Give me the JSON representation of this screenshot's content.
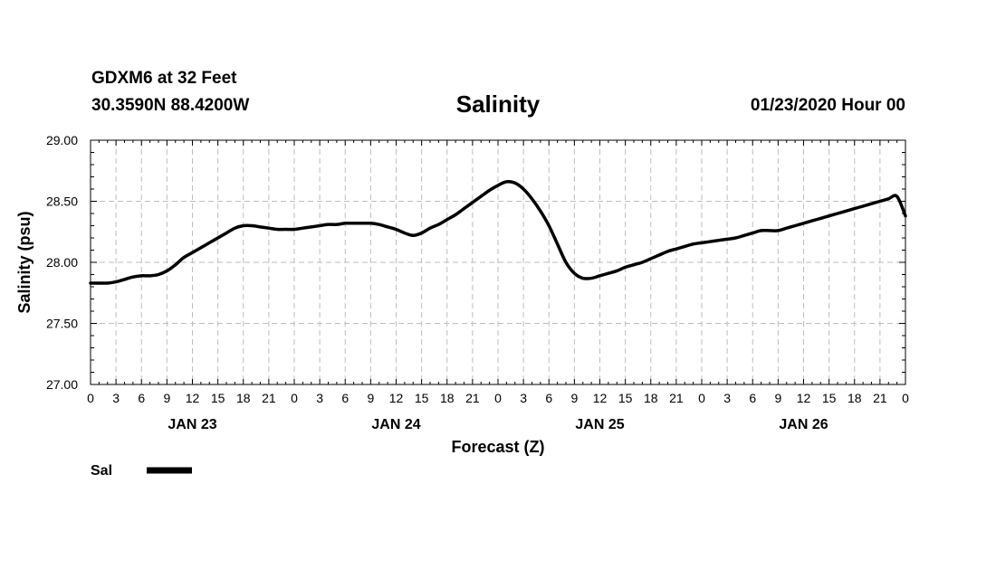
{
  "header": {
    "station": "GDXM6 at 32 Feet",
    "coords": "30.3590N 88.4200W",
    "datetime": "01/23/2020 Hour 00"
  },
  "chart_data": {
    "type": "line",
    "title": "Salinity",
    "xlabel": "Forecast (Z)",
    "ylabel": "Salinity (psu)",
    "ylim": [
      27.0,
      29.0
    ],
    "yticks": [
      "27.00",
      "27.50",
      "28.00",
      "28.50",
      "29.00"
    ],
    "xlim": [
      0,
      96
    ],
    "x_tick_step_hours": 3,
    "x_tick_labels": [
      "0",
      "3",
      "6",
      "9",
      "12",
      "15",
      "18",
      "21",
      "0",
      "3",
      "6",
      "9",
      "12",
      "15",
      "18",
      "21",
      "0",
      "3",
      "6",
      "9",
      "12",
      "15",
      "18",
      "21",
      "0",
      "3",
      "6",
      "9",
      "12",
      "15",
      "18",
      "21",
      "0"
    ],
    "day_labels": [
      {
        "label": "JAN 23",
        "hour": 12
      },
      {
        "label": "JAN 24",
        "hour": 36
      },
      {
        "label": "JAN 25",
        "hour": 60
      },
      {
        "label": "JAN 26",
        "hour": 84
      }
    ],
    "grid": true,
    "line_color": "#000000",
    "series": [
      {
        "name": "Sal",
        "x": [
          0,
          1,
          2,
          3,
          4,
          5,
          6,
          7,
          8,
          9,
          10,
          11,
          12,
          13,
          14,
          15,
          16,
          17,
          18,
          19,
          20,
          21,
          22,
          23,
          24,
          25,
          26,
          27,
          28,
          29,
          30,
          31,
          32,
          33,
          34,
          35,
          36,
          37,
          38,
          39,
          40,
          41,
          42,
          43,
          44,
          45,
          46,
          47,
          48,
          49,
          50,
          51,
          52,
          53,
          54,
          55,
          56,
          57,
          58,
          59,
          60,
          61,
          62,
          63,
          64,
          65,
          66,
          67,
          68,
          69,
          70,
          71,
          72,
          73,
          74,
          75,
          76,
          77,
          78,
          79,
          80,
          81,
          82,
          83,
          84,
          85,
          86,
          87,
          88,
          89,
          90,
          91,
          92,
          93,
          94,
          95,
          96
        ],
        "values": [
          27.83,
          27.83,
          27.83,
          27.84,
          27.86,
          27.88,
          27.89,
          27.89,
          27.9,
          27.93,
          27.98,
          28.04,
          28.08,
          28.12,
          28.16,
          28.2,
          28.24,
          28.28,
          28.3,
          28.3,
          28.29,
          28.28,
          28.27,
          28.27,
          28.27,
          28.28,
          28.29,
          28.3,
          28.31,
          28.31,
          28.32,
          28.32,
          28.32,
          28.32,
          28.31,
          28.29,
          28.27,
          28.24,
          28.22,
          28.24,
          28.28,
          28.31,
          28.35,
          28.39,
          28.44,
          28.49,
          28.54,
          28.59,
          28.63,
          28.66,
          28.65,
          28.6,
          28.52,
          28.42,
          28.3,
          28.15,
          28.0,
          27.91,
          27.87,
          27.87,
          27.89,
          27.91,
          27.93,
          27.96,
          27.98,
          28.0,
          28.03,
          28.06,
          28.09,
          28.11,
          28.13,
          28.15,
          28.16,
          28.17,
          28.18,
          28.19,
          28.2,
          28.22,
          28.24,
          28.26,
          28.26,
          28.26,
          28.28,
          28.3,
          28.32,
          28.34,
          28.36,
          28.38,
          28.4,
          28.42,
          28.44,
          28.46,
          28.48,
          28.5,
          28.52,
          28.54,
          28.38
        ]
      }
    ],
    "legend": {
      "label": "Sal",
      "placement": "bottom-left"
    }
  }
}
